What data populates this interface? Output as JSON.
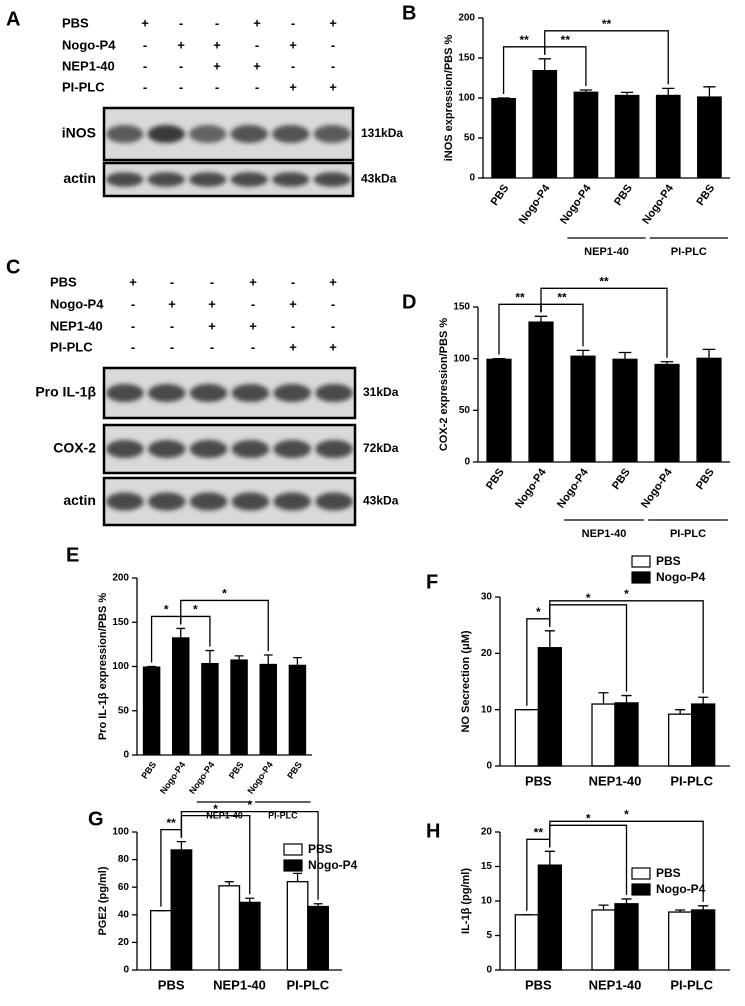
{
  "blots": [
    {
      "panel": "A",
      "treatments": [
        {
          "name": "PBS",
          "signs": [
            "+",
            "-",
            "-",
            "+",
            "-",
            "+"
          ]
        },
        {
          "name": "Nogo-P4",
          "signs": [
            "-",
            "+",
            "+",
            "-",
            "+",
            "-"
          ]
        },
        {
          "name": "NEP1-40",
          "signs": [
            "-",
            "-",
            "+",
            "+",
            "-",
            "-"
          ]
        },
        {
          "name": "PI-PLC",
          "signs": [
            "-",
            "-",
            "-",
            "-",
            "+",
            "+"
          ]
        }
      ],
      "bands": [
        {
          "name": "iNOS",
          "size": "131kDa"
        },
        {
          "name": "actin",
          "size": "43kDa"
        }
      ]
    },
    {
      "panel": "C",
      "treatments": [
        {
          "name": "PBS",
          "signs": [
            "+",
            "-",
            "-",
            "+",
            "-",
            "+"
          ]
        },
        {
          "name": "Nogo-P4",
          "signs": [
            "-",
            "+",
            "+",
            "-",
            "+",
            "-"
          ]
        },
        {
          "name": "NEP1-40",
          "signs": [
            "-",
            "-",
            "+",
            "+",
            "-",
            "-"
          ]
        },
        {
          "name": "PI-PLC",
          "signs": [
            "-",
            "-",
            "-",
            "-",
            "+",
            "+"
          ]
        }
      ],
      "bands": [
        {
          "name": "Pro IL-1β",
          "size": "31kDa"
        },
        {
          "name": "COX-2",
          "size": "72kDa"
        },
        {
          "name": "actin",
          "size": "43kDa"
        }
      ]
    }
  ],
  "chart_data": [
    {
      "type": "bar",
      "panel": "B",
      "y_label": "iNOS expression/PBS %",
      "categories": [
        "PBS",
        "Nogo-P4",
        "Nogo-P4",
        "PBS",
        "Nogo-P4",
        "PBS"
      ],
      "values": [
        100,
        135,
        108,
        104,
        104,
        102
      ],
      "errors": [
        0,
        14,
        2,
        3,
        8,
        12
      ],
      "color": "#000000",
      "ylim": [
        0,
        200
      ],
      "yticks": [
        0,
        50,
        100,
        150,
        200
      ],
      "groups": [
        {
          "label": "NEP1-40",
          "categories": [
            2,
            3
          ]
        },
        {
          "label": "PI-PLC",
          "categories": [
            4,
            5
          ]
        }
      ],
      "significance": [
        {
          "label": "**",
          "from": 0,
          "to": 1
        },
        {
          "label": "**",
          "from": 1,
          "to": 2
        },
        {
          "label": "**",
          "from": 1,
          "to": 4
        }
      ]
    },
    {
      "type": "bar",
      "panel": "D",
      "y_label": "COX-2 expression/PBS %",
      "categories": [
        "PBS",
        "Nogo-P4",
        "Nogo-P4",
        "PBS",
        "Nogo-P4",
        "PBS"
      ],
      "values": [
        100,
        136,
        103,
        100,
        95,
        101
      ],
      "errors": [
        0,
        5,
        5,
        6,
        2,
        8
      ],
      "color": "#000000",
      "ylim": [
        0,
        150
      ],
      "yticks": [
        0,
        50,
        100,
        150
      ],
      "groups": [
        {
          "label": "NEP1-40",
          "categories": [
            2,
            3
          ]
        },
        {
          "label": "PI-PLC",
          "categories": [
            4,
            5
          ]
        }
      ],
      "significance": [
        {
          "label": "**",
          "from": 0,
          "to": 1
        },
        {
          "label": "**",
          "from": 1,
          "to": 2
        },
        {
          "label": "**",
          "from": 1,
          "to": 4
        }
      ]
    },
    {
      "type": "bar",
      "panel": "E",
      "y_label": "Pro IL-1β  expression/PBS %",
      "categories": [
        "PBS",
        "Nogo-P4",
        "Nogo-P4",
        "PBS",
        "Nogo-P4",
        "PBS"
      ],
      "values": [
        100,
        133,
        104,
        108,
        103,
        102
      ],
      "errors": [
        0,
        10,
        14,
        4,
        10,
        8
      ],
      "color": "#000000",
      "ylim": [
        0,
        200
      ],
      "yticks": [
        0,
        50,
        100,
        150,
        200
      ],
      "groups": [
        {
          "label": "NEP1-40",
          "categories": [
            2,
            3
          ]
        },
        {
          "label": "PI-PLC",
          "categories": [
            4,
            5
          ]
        }
      ],
      "significance": [
        {
          "label": "*",
          "from": 0,
          "to": 1
        },
        {
          "label": "*",
          "from": 1,
          "to": 2
        },
        {
          "label": "*",
          "from": 1,
          "to": 4
        }
      ]
    },
    {
      "type": "grouped_bar",
      "panel": "F",
      "y_label": "NO Secrection (μM)",
      "categories": [
        "PBS",
        "NEP1-40",
        "PI-PLC"
      ],
      "series": [
        {
          "name": "PBS",
          "color": "#ffffff",
          "values": [
            10,
            11,
            9.2
          ],
          "errors": [
            0,
            2,
            0.8
          ]
        },
        {
          "name": "Nogo-P4",
          "color": "#000000",
          "values": [
            21,
            11.2,
            11
          ],
          "errors": [
            3,
            1.3,
            1.2
          ]
        }
      ],
      "ylim": [
        0,
        30
      ],
      "yticks": [
        0,
        10,
        20,
        30
      ],
      "legend": "top-right",
      "significance": [
        {
          "label": "*",
          "from": [
            0,
            0
          ],
          "to": [
            0,
            1
          ]
        },
        {
          "label": "*",
          "from": [
            0,
            1
          ],
          "to": [
            1,
            1
          ]
        },
        {
          "label": "*",
          "from": [
            0,
            1
          ],
          "to": [
            2,
            1
          ]
        }
      ]
    },
    {
      "type": "grouped_bar",
      "panel": "G",
      "y_label": "PGE2 (pg/ml)",
      "categories": [
        "PBS",
        "NEP1-40",
        "PI-PLC"
      ],
      "series": [
        {
          "name": "PBS",
          "color": "#ffffff",
          "values": [
            43,
            61,
            64
          ],
          "errors": [
            0,
            3,
            6
          ]
        },
        {
          "name": "Nogo-P4",
          "color": "#000000",
          "values": [
            87,
            49,
            46
          ],
          "errors": [
            6,
            3,
            2
          ]
        }
      ],
      "ylim": [
        0,
        100
      ],
      "yticks": [
        0,
        20,
        40,
        60,
        80,
        100
      ],
      "legend": "top-right",
      "significance": [
        {
          "label": "**",
          "from": [
            0,
            0
          ],
          "to": [
            0,
            1
          ]
        },
        {
          "label": "*",
          "from": [
            0,
            1
          ],
          "to": [
            1,
            1
          ]
        },
        {
          "label": "*",
          "from": [
            0,
            1
          ],
          "to": [
            2,
            1
          ]
        }
      ]
    },
    {
      "type": "grouped_bar",
      "panel": "H",
      "y_label": "IL-1β  (pg/ml)",
      "categories": [
        "PBS",
        "NEP1-40",
        "PI-PLC"
      ],
      "series": [
        {
          "name": "PBS",
          "color": "#ffffff",
          "values": [
            8,
            8.7,
            8.4
          ],
          "errors": [
            0,
            0.7,
            0.3
          ]
        },
        {
          "name": "Nogo-P4",
          "color": "#000000",
          "values": [
            15.2,
            9.6,
            8.7
          ],
          "errors": [
            2,
            0.7,
            0.6
          ]
        }
      ],
      "ylim": [
        0,
        20
      ],
      "yticks": [
        0,
        5,
        10,
        15,
        20
      ],
      "legend": "top-right",
      "significance": [
        {
          "label": "**",
          "from": [
            0,
            0
          ],
          "to": [
            0,
            1
          ]
        },
        {
          "label": "*",
          "from": [
            0,
            1
          ],
          "to": [
            1,
            1
          ]
        },
        {
          "label": "*",
          "from": [
            0,
            1
          ],
          "to": [
            2,
            1
          ]
        }
      ]
    }
  ]
}
